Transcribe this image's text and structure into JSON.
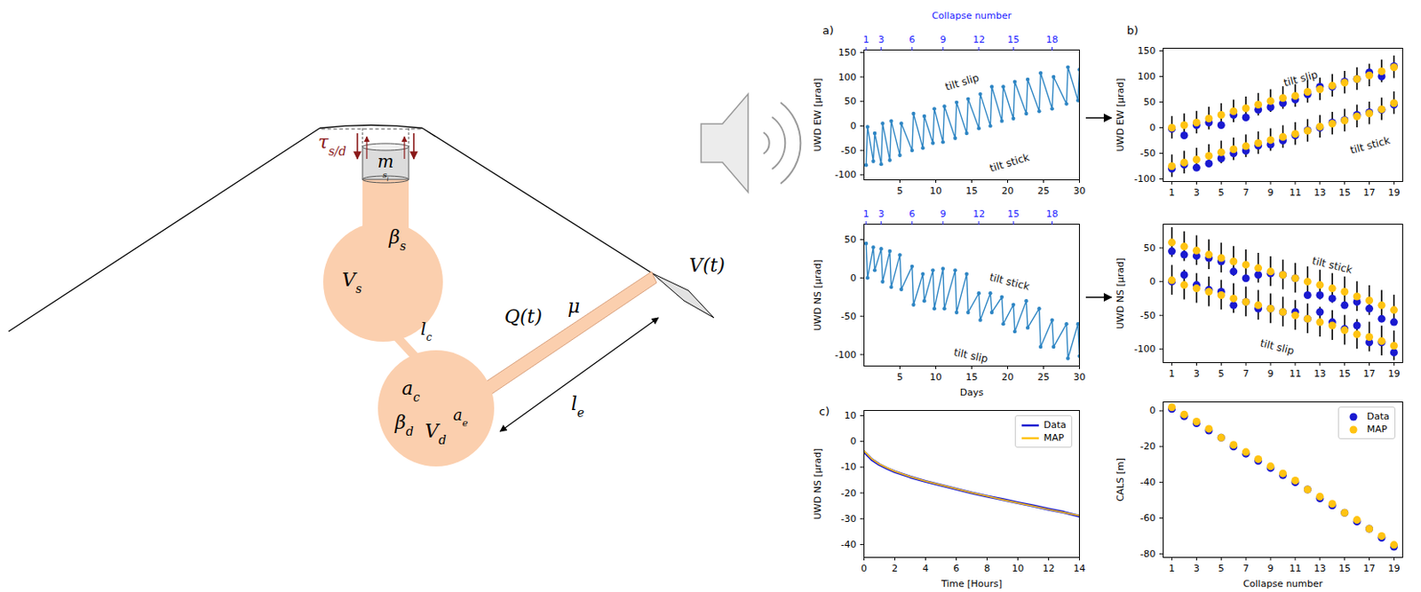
{
  "diagram": {
    "labels": [
      {
        "text": "τ",
        "sub": "s/d"
      },
      {
        "text": "m"
      },
      {
        "text": "s",
        "sub": "l"
      },
      {
        "text": "β",
        "sub": "s"
      },
      {
        "text": "V",
        "sub": "s"
      },
      {
        "text": "l",
        "sub": "c"
      },
      {
        "text": "a",
        "sub": "c"
      },
      {
        "text": "β",
        "sub": "d"
      },
      {
        "text": "V",
        "sub": "d"
      },
      {
        "text": "a",
        "sub": "e"
      },
      {
        "text": "Q(t)"
      },
      {
        "text": "μ"
      },
      {
        "text": "l",
        "sub": "e"
      },
      {
        "text": "V(t)"
      }
    ]
  },
  "chart_data": [
    {
      "panel": "a)",
      "type": "line",
      "ylabel": "UWD EW [μrad]",
      "xlim": [
        0,
        30
      ],
      "xticks": [
        5,
        10,
        15,
        20,
        25,
        30
      ],
      "ylim": [
        -110,
        155
      ],
      "yticks": [
        -100,
        -50,
        0,
        50,
        100,
        150
      ],
      "top_axis": {
        "label": "Collapse number",
        "color": "#1a1aff",
        "ticks": [
          {
            "value": 0.3,
            "label": "1"
          },
          {
            "value": 2.4,
            "label": "3"
          },
          {
            "value": 6.7,
            "label": "6"
          },
          {
            "value": 11.0,
            "label": "9"
          },
          {
            "value": 16.0,
            "label": "12"
          },
          {
            "value": 20.8,
            "label": "15"
          },
          {
            "value": 26.2,
            "label": "18"
          }
        ]
      },
      "series": [
        {
          "color": "#2f86c4",
          "marker": "dot",
          "x": [
            0.3,
            0.5,
            1.3,
            1.5,
            2.4,
            2.6,
            3.6,
            3.8,
            5.0,
            5.2,
            6.7,
            6.9,
            8.2,
            8.4,
            9.6,
            9.8,
            11.0,
            11.2,
            12.7,
            12.9,
            14.3,
            14.5,
            16.0,
            16.2,
            17.6,
            17.8,
            19.2,
            19.4,
            20.8,
            21.0,
            22.6,
            22.8,
            24.4,
            24.6,
            26.2,
            26.4,
            28.2,
            28.4,
            29.8,
            30
          ],
          "values": [
            -80,
            -2,
            -72,
            -15,
            -78,
            5,
            -70,
            10,
            -60,
            5,
            -50,
            25,
            -45,
            20,
            -35,
            35,
            -33,
            40,
            -25,
            48,
            -15,
            55,
            -5,
            65,
            0,
            80,
            10,
            80,
            15,
            90,
            25,
            95,
            30,
            108,
            35,
            100,
            45,
            120,
            52,
            115
          ]
        }
      ],
      "annotations": [
        "tilt slip",
        "tilt stick"
      ]
    },
    {
      "type": "line",
      "xlabel": "Days",
      "ylabel": "UWD NS [μrad]",
      "xlim": [
        0,
        30
      ],
      "xticks": [
        5,
        10,
        15,
        20,
        25,
        30
      ],
      "ylim": [
        -115,
        70
      ],
      "yticks": [
        -100,
        -50,
        0,
        50
      ],
      "top_axis": {
        "color": "#1a1aff",
        "ticks": [
          {
            "value": 0.3,
            "label": "1"
          },
          {
            "value": 2.4,
            "label": "3"
          },
          {
            "value": 6.7,
            "label": "6"
          },
          {
            "value": 11.0,
            "label": "9"
          },
          {
            "value": 16.0,
            "label": "12"
          },
          {
            "value": 20.8,
            "label": "15"
          },
          {
            "value": 26.2,
            "label": "18"
          }
        ]
      },
      "series": [
        {
          "color": "#2f86c4",
          "marker": "dot",
          "x": [
            0.3,
            0.5,
            1.3,
            1.5,
            2.4,
            2.6,
            3.6,
            3.8,
            5.0,
            5.2,
            6.7,
            6.9,
            8.2,
            8.4,
            9.6,
            9.8,
            11.0,
            11.2,
            12.7,
            12.9,
            14.3,
            14.5,
            16.0,
            16.2,
            17.6,
            17.8,
            19.2,
            19.4,
            20.8,
            21.0,
            22.6,
            22.8,
            24.4,
            24.6,
            26.2,
            26.4,
            28.2,
            28.4,
            29.8,
            30
          ],
          "values": [
            45,
            0,
            40,
            10,
            38,
            -5,
            35,
            -12,
            30,
            -15,
            15,
            -35,
            5,
            -30,
            10,
            -40,
            12,
            -40,
            10,
            -45,
            5,
            -45,
            -20,
            -55,
            -20,
            -45,
            -25,
            -60,
            -35,
            -70,
            -30,
            -65,
            -40,
            -90,
            -55,
            -90,
            -60,
            -105,
            -60,
            -102
          ]
        }
      ],
      "annotations": [
        "tilt stick",
        "tilt slip"
      ]
    },
    {
      "panel": "c)",
      "type": "line",
      "xlabel": "Time [Hours]",
      "ylabel": "UWD NS [μrad]",
      "xlim": [
        0,
        14
      ],
      "xticks": [
        0,
        2,
        4,
        6,
        8,
        10,
        12,
        14
      ],
      "ylim": [
        -45,
        12
      ],
      "yticks": [
        -40,
        -30,
        -20,
        -10,
        0,
        10
      ],
      "legend": "upper right",
      "x": [
        0,
        0.5,
        1,
        1.5,
        2,
        3,
        4,
        5,
        6,
        7,
        8,
        9,
        10,
        11,
        12,
        13,
        14
      ],
      "series": [
        {
          "name": "Data",
          "color": "#1a1ad0",
          "values": [
            -4,
            -7,
            -9,
            -10.5,
            -11.8,
            -13.8,
            -15.5,
            -17,
            -18.5,
            -20,
            -21.3,
            -22.5,
            -23.8,
            -25,
            -26.3,
            -27.5,
            -29
          ]
        },
        {
          "name": "MAP",
          "color": "#ffc312",
          "values": [
            -3.6,
            -6.8,
            -8.8,
            -10.3,
            -11.6,
            -13.7,
            -15.4,
            -16.9,
            -18.4,
            -19.9,
            -21.2,
            -22.6,
            -23.9,
            -25.1,
            -26.4,
            -27.6,
            -28.8
          ]
        }
      ]
    },
    {
      "panel": "b)",
      "type": "scatter",
      "ylabel": "UWD EW [μrad]",
      "xlim": [
        0.3,
        19.7
      ],
      "xticks": [
        1,
        3,
        5,
        7,
        9,
        11,
        13,
        15,
        17,
        19
      ],
      "ylim": [
        -105,
        155
      ],
      "yticks": [
        -100,
        -50,
        0,
        50,
        100,
        150
      ],
      "x": [
        1,
        2,
        3,
        4,
        5,
        6,
        7,
        8,
        9,
        10,
        11,
        12,
        13,
        14,
        15,
        16,
        17,
        18,
        19
      ],
      "series": [
        {
          "color": "#1a1ad0",
          "values": [
            -2,
            -15,
            5,
            10,
            5,
            25,
            20,
            35,
            40,
            48,
            55,
            65,
            80,
            80,
            90,
            95,
            108,
            100,
            120
          ]
        },
        {
          "color": "#ffc312",
          "values": [
            0,
            5,
            10,
            18,
            25,
            32,
            38,
            45,
            52,
            58,
            62,
            70,
            75,
            82,
            88,
            95,
            102,
            110,
            118
          ],
          "errors": [
            22,
            22,
            22,
            22,
            22,
            22,
            22,
            22,
            22,
            22,
            22,
            22,
            22,
            22,
            22,
            22,
            22,
            22,
            22
          ]
        },
        {
          "color": "#1a1ad0",
          "values": [
            -80,
            -72,
            -78,
            -70,
            -60,
            -50,
            -45,
            -35,
            -33,
            -25,
            -15,
            -5,
            0,
            10,
            15,
            25,
            30,
            35,
            45
          ]
        },
        {
          "color": "#ffc312",
          "values": [
            -75,
            -68,
            -62,
            -55,
            -48,
            -42,
            -36,
            -30,
            -24,
            -18,
            -12,
            -6,
            2,
            8,
            14,
            22,
            28,
            36,
            48
          ],
          "errors": [
            22,
            22,
            22,
            22,
            22,
            22,
            22,
            22,
            22,
            22,
            22,
            22,
            22,
            22,
            22,
            22,
            22,
            22,
            22
          ]
        }
      ],
      "annotations": [
        "tilt slip",
        "tilt stick"
      ]
    },
    {
      "type": "scatter",
      "ylabel": "UWD NS [μrad]",
      "xlim": [
        0.3,
        19.7
      ],
      "xticks": [
        1,
        3,
        5,
        7,
        9,
        11,
        13,
        15,
        17,
        19
      ],
      "ylim": [
        -120,
        85
      ],
      "yticks": [
        -100,
        -50,
        0,
        50
      ],
      "x": [
        1,
        2,
        3,
        4,
        5,
        6,
        7,
        8,
        9,
        10,
        11,
        12,
        13,
        14,
        15,
        16,
        17,
        18,
        19
      ],
      "series": [
        {
          "color": "#1a1ad0",
          "values": [
            45,
            40,
            38,
            35,
            30,
            15,
            5,
            10,
            12,
            10,
            5,
            -20,
            -20,
            -25,
            -35,
            -30,
            -40,
            -55,
            -60
          ]
        },
        {
          "color": "#ffc312",
          "values": [
            58,
            52,
            46,
            40,
            35,
            30,
            25,
            20,
            15,
            10,
            5,
            0,
            -5,
            -10,
            -15,
            -22,
            -28,
            -35,
            -42
          ],
          "errors": [
            22,
            22,
            22,
            22,
            22,
            22,
            22,
            22,
            22,
            22,
            22,
            22,
            22,
            22,
            22,
            22,
            22,
            22,
            22
          ]
        },
        {
          "color": "#1a1ad0",
          "values": [
            0,
            10,
            -5,
            -12,
            -15,
            -35,
            -30,
            -40,
            -40,
            -45,
            -45,
            -55,
            -45,
            -60,
            -70,
            -65,
            -90,
            -90,
            -105
          ]
        },
        {
          "color": "#ffc312",
          "values": [
            2,
            -5,
            -10,
            -15,
            -20,
            -25,
            -30,
            -35,
            -40,
            -45,
            -50,
            -55,
            -60,
            -65,
            -72,
            -78,
            -82,
            -88,
            -95
          ],
          "errors": [
            22,
            22,
            22,
            22,
            22,
            22,
            22,
            22,
            22,
            22,
            22,
            22,
            22,
            22,
            22,
            22,
            22,
            22,
            22
          ]
        }
      ],
      "annotations": [
        "tilt stick",
        "tilt slip"
      ]
    },
    {
      "type": "scatter",
      "xlabel": "Collapse number",
      "ylabel": "CALS [m]",
      "xlim": [
        0.3,
        19.7
      ],
      "xticks": [
        1,
        3,
        5,
        7,
        9,
        11,
        13,
        15,
        17,
        19
      ],
      "ylim": [
        -82,
        5
      ],
      "yticks": [
        -80,
        -60,
        -40,
        -20,
        0
      ],
      "legend": "upper right",
      "x": [
        1,
        2,
        3,
        4,
        5,
        6,
        7,
        8,
        9,
        10,
        11,
        12,
        13,
        14,
        15,
        16,
        17,
        18,
        19
      ],
      "series": [
        {
          "name": "Data",
          "color": "#1a1ad0",
          "values": [
            1,
            -3,
            -7,
            -11,
            -15,
            -20,
            -24,
            -28,
            -32,
            -36,
            -40,
            -44,
            -49,
            -53,
            -57,
            -62,
            -66,
            -71,
            -76
          ]
        },
        {
          "name": "MAP",
          "color": "#ffc312",
          "values": [
            2,
            -2,
            -6,
            -10,
            -15,
            -19,
            -23,
            -27,
            -31,
            -35,
            -39,
            -44,
            -48,
            -52,
            -57,
            -61,
            -66,
            -70,
            -75
          ]
        }
      ]
    }
  ]
}
